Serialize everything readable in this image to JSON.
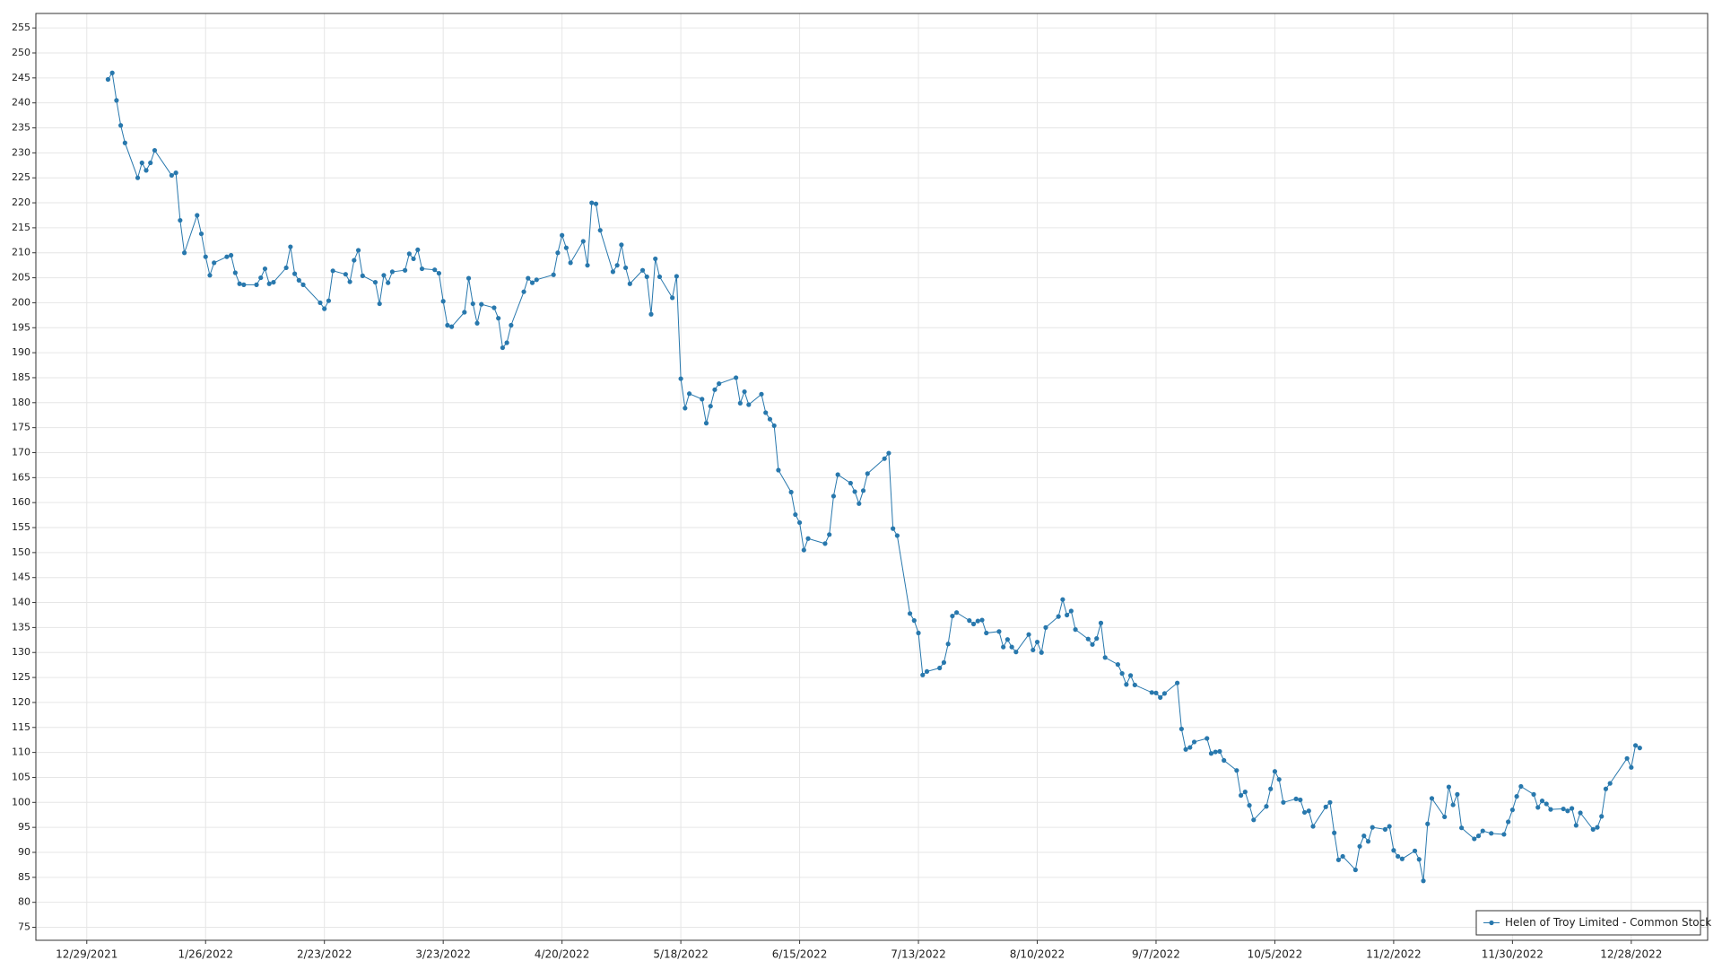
{
  "chart_data": {
    "type": "line",
    "x": [
      "1/3/2022",
      "1/4/2022",
      "1/5/2022",
      "1/6/2022",
      "1/7/2022",
      "1/10/2022",
      "1/11/2022",
      "1/12/2022",
      "1/13/2022",
      "1/14/2022",
      "1/18/2022",
      "1/19/2022",
      "1/20/2022",
      "1/21/2022",
      "1/24/2022",
      "1/25/2022",
      "1/26/2022",
      "1/27/2022",
      "1/28/2022",
      "1/31/2022",
      "2/1/2022",
      "2/2/2022",
      "2/3/2022",
      "2/4/2022",
      "2/7/2022",
      "2/8/2022",
      "2/9/2022",
      "2/10/2022",
      "2/11/2022",
      "2/14/2022",
      "2/15/2022",
      "2/16/2022",
      "2/17/2022",
      "2/18/2022",
      "2/22/2022",
      "2/23/2022",
      "2/24/2022",
      "2/25/2022",
      "2/28/2022",
      "3/1/2022",
      "3/2/2022",
      "3/3/2022",
      "3/4/2022",
      "3/7/2022",
      "3/8/2022",
      "3/9/2022",
      "3/10/2022",
      "3/11/2022",
      "3/14/2022",
      "3/15/2022",
      "3/16/2022",
      "3/17/2022",
      "3/18/2022",
      "3/21/2022",
      "3/22/2022",
      "3/23/2022",
      "3/24/2022",
      "3/25/2022",
      "3/28/2022",
      "3/29/2022",
      "3/30/2022",
      "3/31/2022",
      "4/1/2022",
      "4/4/2022",
      "4/5/2022",
      "4/6/2022",
      "4/7/2022",
      "4/8/2022",
      "4/11/2022",
      "4/12/2022",
      "4/13/2022",
      "4/14/2022",
      "4/18/2022",
      "4/19/2022",
      "4/20/2022",
      "4/21/2022",
      "4/22/2022",
      "4/25/2022",
      "4/26/2022",
      "4/27/2022",
      "4/28/2022",
      "4/29/2022",
      "5/2/2022",
      "5/3/2022",
      "5/4/2022",
      "5/5/2022",
      "5/6/2022",
      "5/9/2022",
      "5/10/2022",
      "5/11/2022",
      "5/12/2022",
      "5/13/2022",
      "5/16/2022",
      "5/17/2022",
      "5/18/2022",
      "5/19/2022",
      "5/20/2022",
      "5/23/2022",
      "5/24/2022",
      "5/25/2022",
      "5/26/2022",
      "5/27/2022",
      "5/31/2022",
      "6/1/2022",
      "6/2/2022",
      "6/3/2022",
      "6/6/2022",
      "6/7/2022",
      "6/8/2022",
      "6/9/2022",
      "6/10/2022",
      "6/13/2022",
      "6/14/2022",
      "6/15/2022",
      "6/16/2022",
      "6/17/2022",
      "6/21/2022",
      "6/22/2022",
      "6/23/2022",
      "6/24/2022",
      "6/27/2022",
      "6/28/2022",
      "6/29/2022",
      "6/30/2022",
      "7/1/2022",
      "7/5/2022",
      "7/6/2022",
      "7/7/2022",
      "7/8/2022",
      "7/11/2022",
      "7/12/2022",
      "7/13/2022",
      "7/14/2022",
      "7/15/2022",
      "7/18/2022",
      "7/19/2022",
      "7/20/2022",
      "7/21/2022",
      "7/22/2022",
      "7/25/2022",
      "7/26/2022",
      "7/27/2022",
      "7/28/2022",
      "7/29/2022",
      "8/1/2022",
      "8/2/2022",
      "8/3/2022",
      "8/4/2022",
      "8/5/2022",
      "8/8/2022",
      "8/9/2022",
      "8/10/2022",
      "8/11/2022",
      "8/12/2022",
      "8/15/2022",
      "8/16/2022",
      "8/17/2022",
      "8/18/2022",
      "8/19/2022",
      "8/22/2022",
      "8/23/2022",
      "8/24/2022",
      "8/25/2022",
      "8/26/2022",
      "8/29/2022",
      "8/30/2022",
      "8/31/2022",
      "9/1/2022",
      "9/2/2022",
      "9/6/2022",
      "9/7/2022",
      "9/8/2022",
      "9/9/2022",
      "9/12/2022",
      "9/13/2022",
      "9/14/2022",
      "9/15/2022",
      "9/16/2022",
      "9/19/2022",
      "9/20/2022",
      "9/21/2022",
      "9/22/2022",
      "9/23/2022",
      "9/26/2022",
      "9/27/2022",
      "9/28/2022",
      "9/29/2022",
      "9/30/2022",
      "10/3/2022",
      "10/4/2022",
      "10/5/2022",
      "10/6/2022",
      "10/7/2022",
      "10/10/2022",
      "10/11/2022",
      "10/12/2022",
      "10/13/2022",
      "10/14/2022",
      "10/17/2022",
      "10/18/2022",
      "10/19/2022",
      "10/20/2022",
      "10/21/2022",
      "10/24/2022",
      "10/25/2022",
      "10/26/2022",
      "10/27/2022",
      "10/28/2022",
      "10/31/2022",
      "11/1/2022",
      "11/2/2022",
      "11/3/2022",
      "11/4/2022",
      "11/7/2022",
      "11/8/2022",
      "11/9/2022",
      "11/10/2022",
      "11/11/2022",
      "11/14/2022",
      "11/15/2022",
      "11/16/2022",
      "11/17/2022",
      "11/18/2022",
      "11/21/2022",
      "11/22/2022",
      "11/23/2022",
      "11/25/2022",
      "11/28/2022",
      "11/29/2022",
      "11/30/2022",
      "12/1/2022",
      "12/2/2022",
      "12/5/2022",
      "12/6/2022",
      "12/7/2022",
      "12/8/2022",
      "12/9/2022",
      "12/12/2022",
      "12/13/2022",
      "12/14/2022",
      "12/15/2022",
      "12/16/2022",
      "12/19/2022",
      "12/20/2022",
      "12/21/2022",
      "12/22/2022",
      "12/23/2022",
      "12/27/2022",
      "12/28/2022",
      "12/29/2022",
      "12/30/2022"
    ],
    "series": [
      {
        "name": "Helen of Troy Limited - Common Stock",
        "color": "#2878ad",
        "values": [
          244.7,
          246,
          240.5,
          235.5,
          232,
          225,
          228,
          226.5,
          228,
          230.5,
          225.5,
          226,
          216.5,
          210,
          217.5,
          213.8,
          209.2,
          205.5,
          208,
          209.2,
          209.5,
          206,
          203.8,
          203.6,
          203.6,
          205,
          206.8,
          203.8,
          204.1,
          207,
          211.2,
          205.8,
          204.5,
          203.6,
          200,
          198.8,
          200.4,
          206.4,
          205.7,
          204.2,
          208.5,
          210.5,
          205.4,
          204.1,
          199.8,
          205.5,
          204,
          206.2,
          206.5,
          209.8,
          208.8,
          210.6,
          206.8,
          206.6,
          205.9,
          200.3,
          195.5,
          195.2,
          198.1,
          204.9,
          199.8,
          195.9,
          199.7,
          199,
          196.9,
          191,
          192,
          195.5,
          202.2,
          204.9,
          204,
          204.6,
          205.6,
          210,
          213.5,
          211,
          208,
          212.3,
          207.5,
          220,
          219.8,
          214.5,
          206.2,
          207.5,
          211.6,
          207,
          203.8,
          206.5,
          205.2,
          197.7,
          208.8,
          205.2,
          201,
          205.3,
          184.8,
          178.9,
          181.8,
          180.7,
          175.9,
          179.3,
          182.6,
          183.8,
          185,
          179.9,
          182.2,
          179.6,
          181.7,
          178,
          176.7,
          175.4,
          166.5,
          162.1,
          157.6,
          156,
          150.5,
          152.8,
          151.8,
          153.6,
          161.3,
          165.6,
          163.9,
          162.2,
          159.8,
          162.4,
          165.8,
          168.8,
          169.9,
          154.8,
          153.4,
          137.8,
          136.4,
          133.9,
          125.5,
          126.2,
          126.9,
          128,
          131.7,
          137.3,
          138,
          136.4,
          135.7,
          136.3,
          136.5,
          133.9,
          134.2,
          131.1,
          132.6,
          131.1,
          130.1,
          133.6,
          130.5,
          132.1,
          130,
          135,
          137.2,
          140.6,
          137.5,
          138.3,
          134.6,
          132.7,
          131.6,
          132.8,
          135.9,
          129,
          127.6,
          125.8,
          123.6,
          125.4,
          123.5,
          122,
          121.9,
          121,
          121.8,
          123.9,
          114.7,
          110.6,
          111,
          112.1,
          112.8,
          109.8,
          110.1,
          110.2,
          108.4,
          106.4,
          101.4,
          102.1,
          99.4,
          96.5,
          99.2,
          102.7,
          106.2,
          104.6,
          100,
          100.7,
          100.5,
          98,
          98.3,
          95.2,
          99.1,
          100,
          93.9,
          88.5,
          89.2,
          86.5,
          91.2,
          93.3,
          92.2,
          95,
          94.6,
          95.2,
          90.4,
          89.2,
          88.7,
          90.3,
          88.6,
          84.3,
          95.7,
          100.8,
          97.1,
          103.1,
          99.5,
          101.6,
          94.9,
          92.7,
          93.3,
          94.3,
          93.8,
          93.6,
          96.1,
          98.5,
          101.2,
          103.2,
          101.6,
          99,
          100.3,
          99.7,
          98.6,
          98.7,
          98.3,
          98.8,
          95.4,
          97.9,
          94.6,
          95,
          97.2,
          102.7,
          103.8,
          108.8,
          107,
          111.4,
          110.9
        ]
      }
    ],
    "xlim": [
      "12/17/2021",
      "1/15/2023"
    ],
    "xticks": [
      "12/29/2021",
      "1/26/2022",
      "2/23/2022",
      "3/23/2022",
      "4/20/2022",
      "5/18/2022",
      "6/15/2022",
      "7/13/2022",
      "8/10/2022",
      "9/7/2022",
      "10/5/2022",
      "11/2/2022",
      "11/30/2022",
      "12/28/2022"
    ],
    "ylim": [
      72.4,
      257.9
    ],
    "yticks": [
      75,
      80,
      85,
      90,
      95,
      100,
      105,
      110,
      115,
      120,
      125,
      130,
      135,
      140,
      145,
      150,
      155,
      160,
      165,
      170,
      175,
      180,
      185,
      190,
      195,
      200,
      205,
      210,
      215,
      220,
      225,
      230,
      235,
      240,
      245,
      250,
      255
    ],
    "grid": true,
    "legend": "lower right"
  }
}
